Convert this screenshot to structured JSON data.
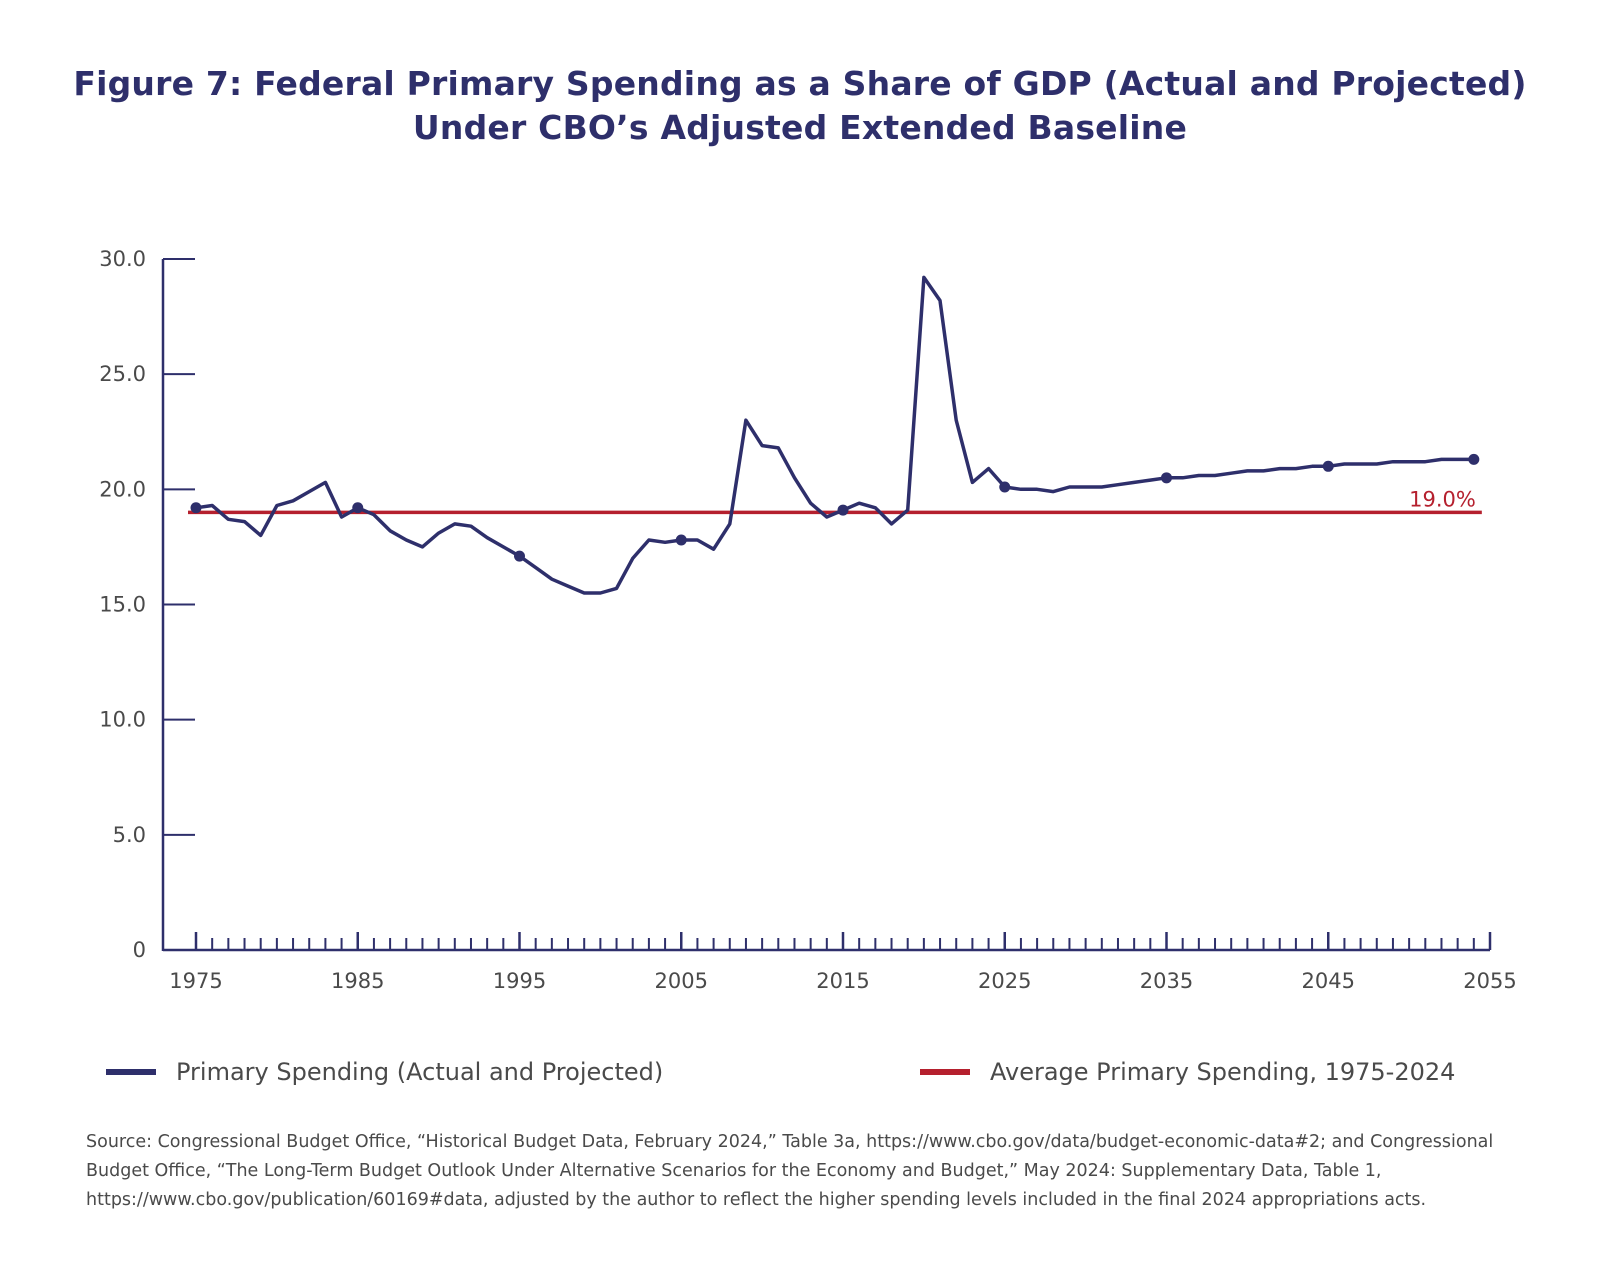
{
  "title": {
    "line1": "Figure 7: Federal Primary Spending as a Share of GDP (Actual and Projected)",
    "line2": "Under CBO’s Adjusted Extended Baseline"
  },
  "chart_data": {
    "type": "line",
    "title": "Figure 7: Federal Primary Spending as a Share of GDP (Actual and Projected) Under CBO’s Adjusted Extended Baseline",
    "xlabel": "",
    "ylabel": "",
    "xlim": [
      1975,
      2055
    ],
    "ylim": [
      0,
      30
    ],
    "y_ticks": [
      "0",
      "5.0",
      "10.0",
      "15.0",
      "20.0",
      "25.0",
      "30.0"
    ],
    "y_tick_values": [
      0,
      5,
      10,
      15,
      20,
      25,
      30
    ],
    "x_ticks": [
      "1975",
      "1985",
      "1995",
      "2005",
      "2015",
      "2025",
      "2035",
      "2045",
      "2055"
    ],
    "x_tick_values": [
      1975,
      1985,
      1995,
      2005,
      2015,
      2025,
      2035,
      2045,
      2055
    ],
    "grid": false,
    "legend_position": "bottom",
    "series": [
      {
        "name": "Primary Spending (Actual and Projected)",
        "color": "#2e2f6b",
        "x": [
          1975,
          1976,
          1977,
          1978,
          1979,
          1980,
          1981,
          1982,
          1983,
          1984,
          1985,
          1986,
          1987,
          1988,
          1989,
          1990,
          1991,
          1992,
          1993,
          1994,
          1995,
          1996,
          1997,
          1998,
          1999,
          2000,
          2001,
          2002,
          2003,
          2004,
          2005,
          2006,
          2007,
          2008,
          2009,
          2010,
          2011,
          2012,
          2013,
          2014,
          2015,
          2016,
          2017,
          2018,
          2019,
          2020,
          2021,
          2022,
          2023,
          2024,
          2025,
          2026,
          2027,
          2028,
          2029,
          2030,
          2031,
          2032,
          2033,
          2034,
          2035,
          2036,
          2037,
          2038,
          2039,
          2040,
          2041,
          2042,
          2043,
          2044,
          2045,
          2046,
          2047,
          2048,
          2049,
          2050,
          2051,
          2052,
          2053,
          2054
        ],
        "values": [
          19.2,
          19.3,
          18.7,
          18.6,
          18.0,
          19.3,
          19.5,
          19.9,
          20.3,
          18.8,
          19.2,
          18.9,
          18.2,
          17.8,
          17.5,
          18.1,
          18.5,
          18.4,
          17.9,
          17.5,
          17.1,
          16.6,
          16.1,
          15.8,
          15.5,
          15.5,
          15.7,
          17.0,
          17.8,
          17.7,
          17.8,
          17.8,
          17.4,
          18.5,
          23.0,
          21.9,
          21.8,
          20.5,
          19.4,
          18.8,
          19.1,
          19.4,
          19.2,
          18.5,
          19.1,
          29.2,
          28.2,
          23.0,
          20.3,
          20.9,
          20.1,
          20.0,
          20.0,
          19.9,
          20.1,
          20.1,
          20.1,
          20.2,
          20.3,
          20.4,
          20.5,
          20.5,
          20.6,
          20.6,
          20.7,
          20.8,
          20.8,
          20.9,
          20.9,
          21.0,
          21.0,
          21.1,
          21.1,
          21.1,
          21.2,
          21.2,
          21.2,
          21.3,
          21.3,
          21.3
        ],
        "marker_years": [
          1975,
          1985,
          1995,
          2005,
          2015,
          2025,
          2035,
          2045,
          2054
        ]
      },
      {
        "name": "Average Primary Spending, 1975-2024",
        "color": "#b5202e",
        "x": [
          1975,
          2054
        ],
        "values": [
          19.0,
          19.0
        ],
        "label": "19.0%"
      }
    ]
  },
  "legend": {
    "item1": "Primary Spending (Actual and Projected)",
    "item2": "Average Primary Spending, 1975-2024"
  },
  "source": "Source: Congressional Budget Office, “Historical Budget Data, February 2024,” Table 3a, https://www.cbo.gov/data/budget-economic-data#2; and Congressional Budget Office, “The Long-Term Budget Outlook Under Alternative Scenarios for the Economy and Budget,” May 2024: Supplementary Data, Table 1, https://www.cbo.gov/publication/60169#data, adjusted by the author to reflect the higher spending levels included in the final 2024 appropriations acts."
}
